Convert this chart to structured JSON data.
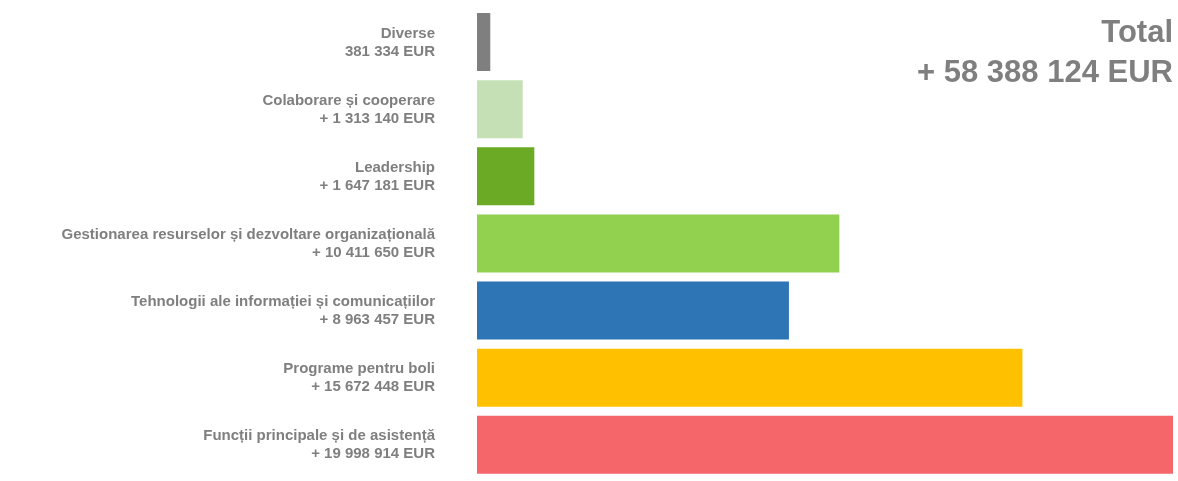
{
  "chart_data": {
    "type": "bar",
    "orientation": "horizontal",
    "title": "Total",
    "subtitle": "+ 58 388 124 EUR",
    "categories": [
      "Diverse",
      "Colaborare și cooperare",
      "Leadership",
      "Gestionarea resurselor și dezvoltare organizațională",
      "Tehnologii ale informației și comunicațiilor",
      "Programe pentru boli",
      "Funcții principale și de asistență"
    ],
    "values": [
      381334,
      1313140,
      1647181,
      10411650,
      8963457,
      15672448,
      19998914
    ],
    "value_labels": [
      "381 334 EUR",
      "+ 1 313 140 EUR",
      "+ 1 647 181 EUR",
      "+ 10 411 650 EUR",
      "+ 8 963 457 EUR",
      "+ 15 672 448 EUR",
      "+ 19 998 914 EUR"
    ],
    "colors": [
      "#7f7f7f",
      "#c5e0b4",
      "#6aaa25",
      "#92d050",
      "#2e75b6",
      "#ffc000",
      "#f4666a"
    ]
  }
}
